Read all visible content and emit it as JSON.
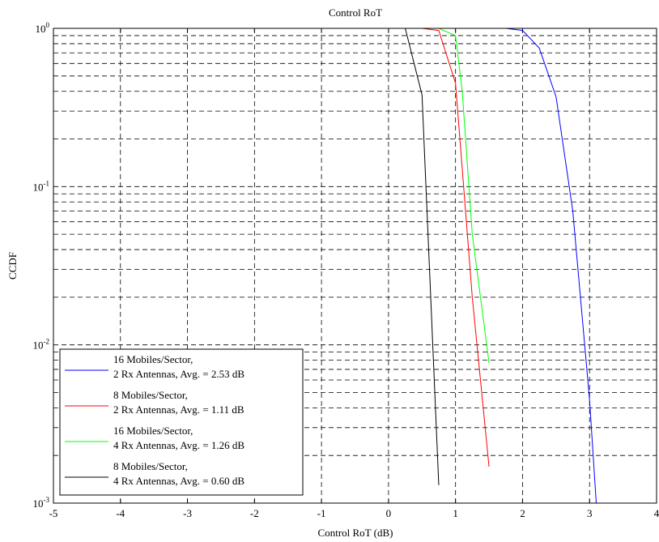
{
  "chart_data": {
    "type": "line",
    "title": "Control RoT",
    "xlabel": "Control RoT (dB)",
    "ylabel": "CCDF",
    "xlim": [
      -5,
      4
    ],
    "ylim": [
      0.001,
      1
    ],
    "yscale": "log",
    "grid": true,
    "legend_position": "bottom-left",
    "x_ticks": [
      "-5",
      "-4",
      "-3",
      "-2",
      "-1",
      "0",
      "1",
      "2",
      "3",
      "4"
    ],
    "y_ticks": [
      {
        "base": "10",
        "exp": "0",
        "value": 1
      },
      {
        "base": "10",
        "exp": "-1",
        "value": 0.1
      },
      {
        "base": "10",
        "exp": "-2",
        "value": 0.01
      },
      {
        "base": "10",
        "exp": "-3",
        "value": 0.001
      }
    ],
    "series": [
      {
        "name_line1": "16 Mobiles/Sector,",
        "name_line2": "2 Rx Antennas, Avg. = 2.53 dB",
        "color": "#0000ff",
        "x": [
          -5,
          1.25,
          1.75,
          2.0,
          2.25,
          2.5,
          2.75,
          3.0,
          3.1
        ],
        "y": [
          1,
          1,
          1,
          0.97,
          0.75,
          0.37,
          0.07,
          0.0045,
          0.001
        ]
      },
      {
        "name_line1": "8 Mobiles/Sector,",
        "name_line2": "2 Rx Antennas, Avg. = 1.11 dB",
        "color": "#ff0000",
        "x": [
          -5,
          0.5,
          0.75,
          1.0,
          1.1,
          1.25,
          1.5
        ],
        "y": [
          1,
          1,
          0.97,
          0.45,
          0.13,
          0.02,
          0.0017
        ]
      },
      {
        "name_line1": "16 Mobiles/Sector,",
        "name_line2": "4 Rx Antennas, Avg. = 1.26 dB",
        "color": "#00ff00",
        "x": [
          -5,
          0.5,
          0.75,
          1.0,
          1.1,
          1.25,
          1.5
        ],
        "y": [
          1,
          1,
          1,
          0.9,
          0.4,
          0.05,
          0.0077
        ]
      },
      {
        "name_line1": "8 Mobiles/Sector,",
        "name_line2": "4 Rx Antennas, Avg. = 0.60 dB",
        "color": "#000000",
        "x": [
          -5,
          0.25,
          0.5,
          0.75
        ],
        "y": [
          1,
          1,
          0.38,
          0.0013
        ]
      }
    ]
  }
}
